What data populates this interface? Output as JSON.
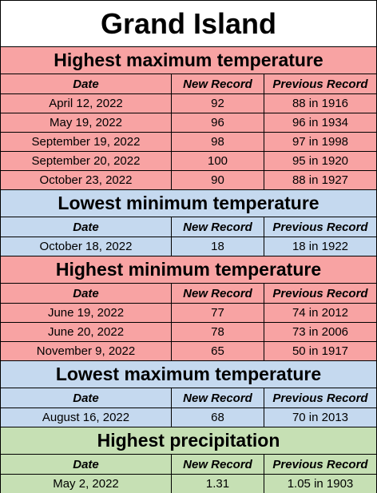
{
  "title": "Grand Island",
  "sections": [
    {
      "heading": "Highest maximum temperature",
      "color": "#f8a3a3",
      "columns": [
        "Date",
        "New Record",
        "Previous Record"
      ],
      "rows": [
        [
          "April 12, 2022",
          "92",
          "88 in 1916"
        ],
        [
          "May 19, 2022",
          "96",
          "96 in 1934"
        ],
        [
          "September 19, 2022",
          "98",
          "97 in 1998"
        ],
        [
          "September 20, 2022",
          "100",
          "95 in 1920"
        ],
        [
          "October 23, 2022",
          "90",
          "88 in 1927"
        ]
      ]
    },
    {
      "heading": "Lowest minimum temperature",
      "color": "#c5d9ef",
      "columns": [
        "Date",
        "New Record",
        "Previous Record"
      ],
      "rows": [
        [
          "October 18, 2022",
          "18",
          "18 in 1922"
        ]
      ]
    },
    {
      "heading": "Highest minimum temperature",
      "color": "#f8a3a3",
      "columns": [
        "Date",
        "New Record",
        "Previous Record"
      ],
      "rows": [
        [
          "June 19, 2022",
          "77",
          "74 in 2012"
        ],
        [
          "June 20, 2022",
          "78",
          "73 in 2006"
        ],
        [
          "November 9, 2022",
          "65",
          "50 in 1917"
        ]
      ]
    },
    {
      "heading": "Lowest maximum temperature",
      "color": "#c5d9ef",
      "columns": [
        "Date",
        "New Record",
        "Previous Record"
      ],
      "rows": [
        [
          "August 16, 2022",
          "68",
          "70 in 2013"
        ]
      ]
    },
    {
      "heading": "Highest precipitation",
      "color": "#c6e0b4",
      "columns": [
        "Date",
        "New Record",
        "Previous Record"
      ],
      "rows": [
        [
          "May 2, 2022",
          "1.31",
          "1.05 in 1903"
        ]
      ]
    }
  ]
}
